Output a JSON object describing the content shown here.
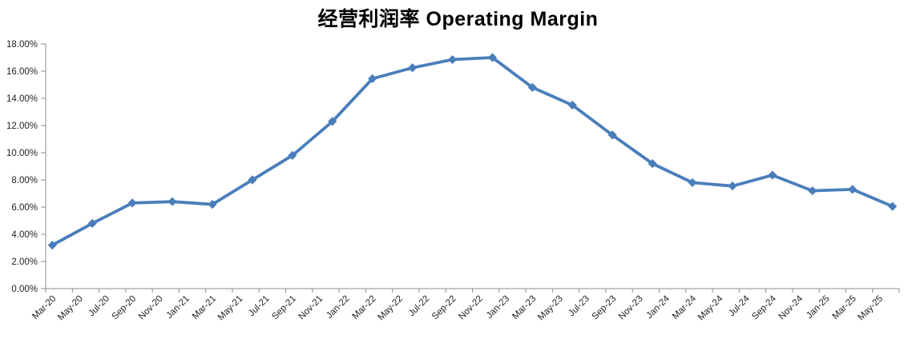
{
  "chart_data": {
    "type": "line",
    "title": "经营利润率 Operating Margin",
    "legend_position": "none",
    "gridlines": false,
    "line_color": "#4A7EBB",
    "marker_style": "diamond",
    "axis_color": "#8C8C8C",
    "text_color": "#1F1F1F",
    "ylim": [
      0,
      18
    ],
    "y_tick_labels": [
      "0.00%",
      "2.00%",
      "4.00%",
      "6.00%",
      "8.00%",
      "10.00%",
      "12.00%",
      "14.00%",
      "16.00%",
      "18.00%"
    ],
    "x_tick_labels": [
      "Mar-20",
      "May-20",
      "Jul-20",
      "Sep-20",
      "Nov-20",
      "Jan-21",
      "Mar-21",
      "May-21",
      "Jul-21",
      "Sep-21",
      "Nov-21",
      "Jan-22",
      "Mar-22",
      "May-22",
      "Jul-22",
      "Sep-22",
      "Nov-22",
      "Jan-23",
      "Mar-23",
      "May-23",
      "Jul-23",
      "Sep-23",
      "Nov-23",
      "Jan-24",
      "Mar-24",
      "May-24",
      "Jul-24",
      "Sep-24",
      "Nov-24",
      "Jan-25",
      "Mar-25",
      "May-25"
    ],
    "series": [
      {
        "name": "Operating Margin",
        "x": [
          "Mar-20",
          "Jun-20",
          "Sep-20",
          "Dec-20",
          "Mar-21",
          "Jun-21",
          "Sep-21",
          "Dec-21",
          "Mar-22",
          "Jun-22",
          "Sep-22",
          "Dec-22",
          "Mar-23",
          "Jun-23",
          "Sep-23",
          "Dec-23",
          "Mar-24",
          "Jun-24",
          "Sep-24",
          "Dec-24",
          "Mar-25",
          "Jun-25"
        ],
        "values_pct": [
          3.2,
          4.8,
          6.3,
          6.4,
          6.2,
          8.0,
          9.8,
          12.3,
          15.45,
          16.25,
          16.85,
          17.0,
          14.8,
          13.5,
          11.3,
          9.2,
          7.8,
          7.55,
          8.35,
          7.2,
          7.3,
          6.05
        ]
      }
    ]
  }
}
